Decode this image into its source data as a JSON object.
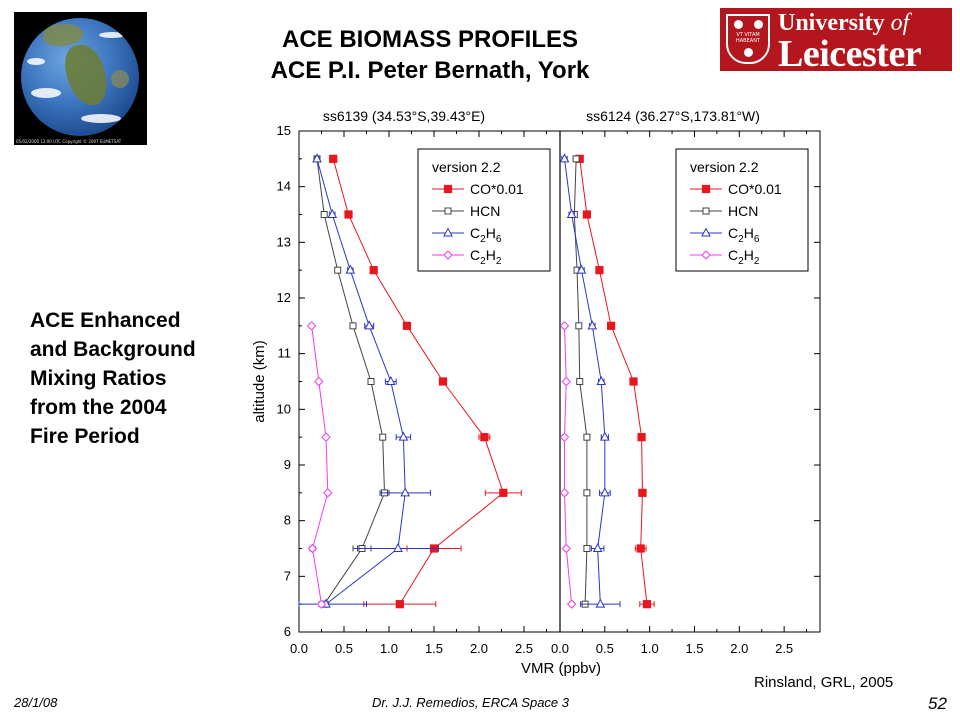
{
  "header": {
    "title_line1": "ACE BIOMASS PROFILES",
    "title_line2": "ACE P.I. Peter Bernath, York"
  },
  "logo": {
    "line1_a": "University",
    "line1_b": "of",
    "line2": "Leicester",
    "motto": "VT VITAM HABEANT",
    "colors": {
      "background": "#b4161d",
      "text": "#ffffff"
    }
  },
  "globe": {
    "caption": "05/02/2000 12:00 UTC Copyright © 2007 EUMETSAT"
  },
  "side_text": [
    "ACE Enhanced",
    "and Background",
    "Mixing Ratios",
    "from the 2004",
    "Fire Period"
  ],
  "citation": "Rinsland, GRL, 2005",
  "footer": {
    "date": "28/1/08",
    "author": "Dr. J.J. Remedios, ERCA Space 3",
    "page": "52"
  },
  "chart_data": {
    "type": "line",
    "ylabel": "altitude (km)",
    "xlabel": "VMR (ppbv)",
    "ylim": [
      6,
      15
    ],
    "xlim": [
      0,
      2.9
    ],
    "xticks": [
      "0.0",
      "0.5",
      "1.0",
      "1.5",
      "2.0",
      "2.5"
    ],
    "yticks": [
      "6",
      "7",
      "8",
      "9",
      "10",
      "11",
      "12",
      "13",
      "14",
      "15"
    ],
    "altitudes": [
      6.5,
      7.5,
      8.5,
      9.5,
      10.5,
      11.5,
      12.5,
      13.5,
      14.5
    ],
    "colors": {
      "CO": "#e8161d",
      "HCN": "#444444",
      "C2H6": "#2b35c8",
      "C2H2": "#f03cf0"
    },
    "legend": {
      "title": "version 2.2",
      "entries": [
        {
          "key": "CO",
          "label": "CO*0.01"
        },
        {
          "key": "HCN",
          "label": "HCN"
        },
        {
          "key": "C2H6",
          "label": "C",
          "sub1": "2",
          "mid": "H",
          "sub2": "6"
        },
        {
          "key": "C2H2",
          "label": "C",
          "sub1": "2",
          "mid": "H",
          "sub2": "2"
        }
      ]
    },
    "panels": [
      {
        "title": "ss6139 (34.53°S,39.43°E)",
        "series": [
          {
            "key": "CO",
            "marker": "square-filled",
            "values": [
              1.12,
              1.5,
              2.27,
              2.06,
              1.6,
              1.2,
              0.83,
              0.55,
              0.38
            ],
            "errors": [
              0.4,
              0.3,
              0.2,
              0.06,
              0.04,
              0.03,
              0.02,
              0.02,
              0.02
            ]
          },
          {
            "key": "HCN",
            "marker": "square-open",
            "values": [
              0.28,
              0.7,
              0.95,
              0.93,
              0.8,
              0.6,
              0.43,
              0.28,
              0.2
            ],
            "errors": [
              0.05,
              0.1,
              0.05,
              0.03,
              0.02,
              0.02,
              0.02,
              0.02,
              0.02
            ]
          },
          {
            "key": "C2H6",
            "marker": "triangle-open",
            "values": [
              0.3,
              1.1,
              1.18,
              1.16,
              1.02,
              0.78,
              0.57,
              0.37,
              0.2
            ],
            "errors": [
              0.45,
              0.45,
              0.28,
              0.08,
              0.06,
              0.05,
              0.03,
              0.03,
              0.02
            ]
          },
          {
            "key": "C2H2",
            "marker": "diamond-open",
            "values": [
              0.25,
              0.15,
              0.32,
              0.3,
              0.22,
              0.14,
              null,
              null,
              null
            ],
            "errors": [
              0.03,
              0.03,
              0.02,
              0.02,
              0.02,
              0.02,
              null,
              null,
              null
            ]
          }
        ]
      },
      {
        "title": "ss6124 (36.27°S,173.81°W)",
        "series": [
          {
            "key": "CO",
            "marker": "square-filled",
            "values": [
              0.97,
              0.9,
              0.92,
              0.91,
              0.82,
              0.57,
              0.44,
              0.3,
              0.22
            ],
            "errors": [
              0.08,
              0.06,
              0.04,
              0.03,
              0.03,
              0.02,
              0.02,
              0.02,
              0.02
            ]
          },
          {
            "key": "HCN",
            "marker": "square-open",
            "values": [
              0.28,
              0.3,
              0.3,
              0.3,
              0.22,
              0.21,
              0.19,
              0.16,
              0.18
            ],
            "errors": [
              0.02,
              0.02,
              0.02,
              0.02,
              0.02,
              0.02,
              0.02,
              0.02,
              0.02
            ]
          },
          {
            "key": "C2H6",
            "marker": "triangle-open",
            "values": [
              0.45,
              0.42,
              0.5,
              0.5,
              0.46,
              0.36,
              0.24,
              0.13,
              0.05
            ],
            "errors": [
              0.22,
              0.07,
              0.06,
              0.04,
              0.03,
              0.03,
              0.03,
              0.03,
              0.03
            ]
          },
          {
            "key": "C2H2",
            "marker": "diamond-open",
            "values": [
              0.13,
              0.07,
              0.05,
              0.05,
              0.07,
              0.05,
              null,
              null,
              null
            ],
            "errors": [
              0.02,
              0.02,
              0.02,
              0.02,
              0.02,
              0.02,
              null,
              null,
              null
            ]
          }
        ]
      }
    ]
  }
}
